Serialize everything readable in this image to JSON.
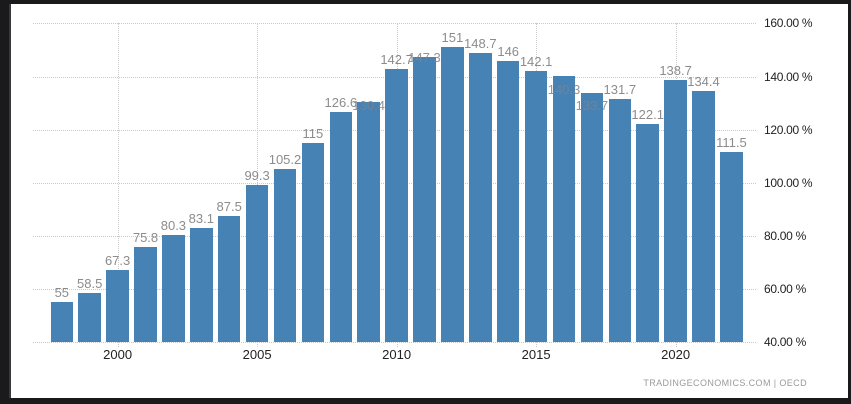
{
  "chart_data": {
    "type": "bar",
    "title": "",
    "xlabel": "",
    "ylabel": "",
    "x": [
      1998,
      1999,
      2000,
      2001,
      2002,
      2003,
      2004,
      2005,
      2006,
      2007,
      2008,
      2009,
      2010,
      2011,
      2012,
      2013,
      2014,
      2015,
      2016,
      2017,
      2018,
      2019,
      2020,
      2021,
      2022
    ],
    "values": [
      55,
      58.5,
      67.3,
      75.8,
      80.3,
      83.1,
      87.5,
      99.3,
      105.2,
      115,
      126.6,
      130.4,
      142.7,
      147.3,
      151,
      148.7,
      146,
      142.1,
      140.3,
      133.7,
      131.7,
      122.1,
      138.7,
      134.4,
      111.5
    ],
    "data_labels": [
      "55",
      "58.5",
      "67.3",
      "75.8",
      "80.3",
      "83.1",
      "87.5",
      "99.3",
      "105.2",
      "115",
      "126.6",
      "130.4",
      "142.7",
      "147.3",
      "151",
      "148.7",
      "146",
      "142.1",
      "140.3",
      "133.7",
      "131.7",
      "122.1",
      "138.7",
      "134.4",
      "111.5"
    ],
    "xticks": [
      2000,
      2005,
      2010,
      2015,
      2020
    ],
    "yticks": [
      160,
      140,
      120,
      100,
      80,
      60,
      40
    ],
    "ytick_labels": [
      "160.00 %",
      "140.00 %",
      "120.00 %",
      "100.00 %",
      "80.00 %",
      "60.00 %",
      "40.00 %"
    ],
    "ylim": [
      40,
      160
    ],
    "grid": "dotted",
    "legend": "none",
    "bar_color": "#4682b4",
    "data_label_color": "#8c8c8c",
    "axis_label_color": "#222222",
    "overlapped_label_offsets": {
      "11": -4,
      "13": -7,
      "18": 6,
      "19": 5
    }
  },
  "attribution": {
    "text": "TRADINGECONOMICS.COM  |  OECD"
  }
}
